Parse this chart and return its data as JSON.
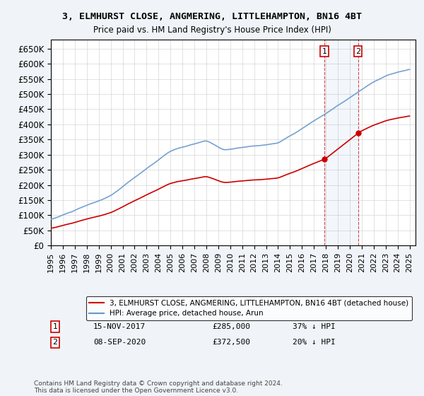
{
  "title_line1": "3, ELMHURST CLOSE, ANGMERING, LITTLEHAMPTON, BN16 4BT",
  "title_line2": "Price paid vs. HM Land Registry's House Price Index (HPI)",
  "ylabel": "",
  "xlabel": "",
  "ylim": [
    0,
    680000
  ],
  "yticks": [
    0,
    50000,
    100000,
    150000,
    200000,
    250000,
    300000,
    350000,
    400000,
    450000,
    500000,
    550000,
    600000,
    650000
  ],
  "ytick_labels": [
    "£0",
    "£50K",
    "£100K",
    "£150K",
    "£200K",
    "£250K",
    "£300K",
    "£350K",
    "£400K",
    "£450K",
    "£500K",
    "£550K",
    "£600K",
    "£650K"
  ],
  "hpi_color": "#6699cc",
  "price_color": "#cc0000",
  "sale1_year": 2017.88,
  "sale1_price": 285000,
  "sale1_label": "1",
  "sale2_year": 2020.69,
  "sale2_price": 372500,
  "sale2_label": "2",
  "legend_line1": "3, ELMHURST CLOSE, ANGMERING, LITTLEHAMPTON, BN16 4BT (detached house)",
  "legend_line2": "HPI: Average price, detached house, Arun",
  "annotation1": "1    15-NOV-2017         £285,000         37% ↓ HPI",
  "annotation2": "2    08-SEP-2020         £372,500         20% ↓ HPI",
  "footnote": "Contains HM Land Registry data © Crown copyright and database right 2024.\nThis data is licensed under the Open Government Licence v3.0.",
  "background_color": "#f0f4f8",
  "plot_bg_color": "#ffffff",
  "grid_color": "#cccccc"
}
